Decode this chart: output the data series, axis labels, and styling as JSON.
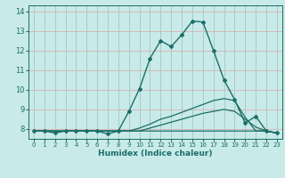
{
  "xlabel": "Humidex (Indice chaleur)",
  "background_color": "#c8eae8",
  "hgrid_color": "#d8b8b8",
  "vgrid_color": "#a8ccc8",
  "line_color": "#1a6e68",
  "xlim": [
    -0.5,
    23.5
  ],
  "ylim": [
    7.5,
    14.3
  ],
  "yticks": [
    8,
    9,
    10,
    11,
    12,
    13,
    14
  ],
  "xticks": [
    0,
    1,
    2,
    3,
    4,
    5,
    6,
    7,
    8,
    9,
    10,
    11,
    12,
    13,
    14,
    15,
    16,
    17,
    18,
    19,
    20,
    21,
    22,
    23
  ],
  "curves": [
    {
      "x": [
        0,
        1,
        2,
        3,
        4,
        5,
        6,
        7,
        8,
        9,
        10,
        11,
        12,
        13,
        14,
        15,
        16,
        17,
        18,
        19,
        20,
        21,
        22,
        23
      ],
      "y": [
        7.9,
        7.9,
        7.8,
        7.9,
        7.9,
        7.9,
        7.9,
        7.75,
        7.9,
        8.9,
        10.05,
        11.6,
        12.5,
        12.2,
        12.8,
        13.5,
        13.45,
        12.0,
        10.5,
        9.5,
        8.3,
        8.65,
        7.9,
        7.8
      ],
      "lw": 1.0,
      "marker": "D",
      "markersize": 2.0
    },
    {
      "x": [
        0,
        1,
        2,
        3,
        4,
        5,
        6,
        7,
        8,
        9,
        10,
        11,
        12,
        13,
        14,
        15,
        16,
        17,
        18,
        19,
        20,
        21,
        22,
        23
      ],
      "y": [
        7.9,
        7.9,
        7.9,
        7.9,
        7.9,
        7.9,
        7.9,
        7.9,
        7.9,
        7.9,
        8.05,
        8.25,
        8.5,
        8.65,
        8.85,
        9.05,
        9.25,
        9.45,
        9.55,
        9.45,
        8.6,
        7.9,
        7.9,
        7.8
      ],
      "lw": 0.9,
      "marker": null,
      "markersize": 0
    },
    {
      "x": [
        0,
        1,
        2,
        3,
        4,
        5,
        6,
        7,
        8,
        9,
        10,
        11,
        12,
        13,
        14,
        15,
        16,
        17,
        18,
        19,
        20,
        21,
        22,
        23
      ],
      "y": [
        7.9,
        7.9,
        7.9,
        7.9,
        7.9,
        7.9,
        7.9,
        7.9,
        7.9,
        7.9,
        7.9,
        8.05,
        8.2,
        8.35,
        8.5,
        8.65,
        8.8,
        8.9,
        9.0,
        8.9,
        8.5,
        8.1,
        7.9,
        7.8
      ],
      "lw": 0.9,
      "marker": null,
      "markersize": 0
    },
    {
      "x": [
        0,
        1,
        2,
        3,
        4,
        5,
        6,
        7,
        8,
        9,
        10,
        11,
        12,
        13,
        14,
        15,
        16,
        17,
        18,
        19,
        20,
        21,
        22,
        23
      ],
      "y": [
        7.9,
        7.9,
        7.9,
        7.9,
        7.9,
        7.9,
        7.9,
        7.9,
        7.9,
        7.9,
        7.9,
        7.9,
        7.9,
        7.9,
        7.9,
        7.9,
        7.9,
        7.9,
        7.9,
        7.9,
        7.9,
        7.9,
        7.9,
        7.8
      ],
      "lw": 0.9,
      "marker": null,
      "markersize": 0
    }
  ]
}
